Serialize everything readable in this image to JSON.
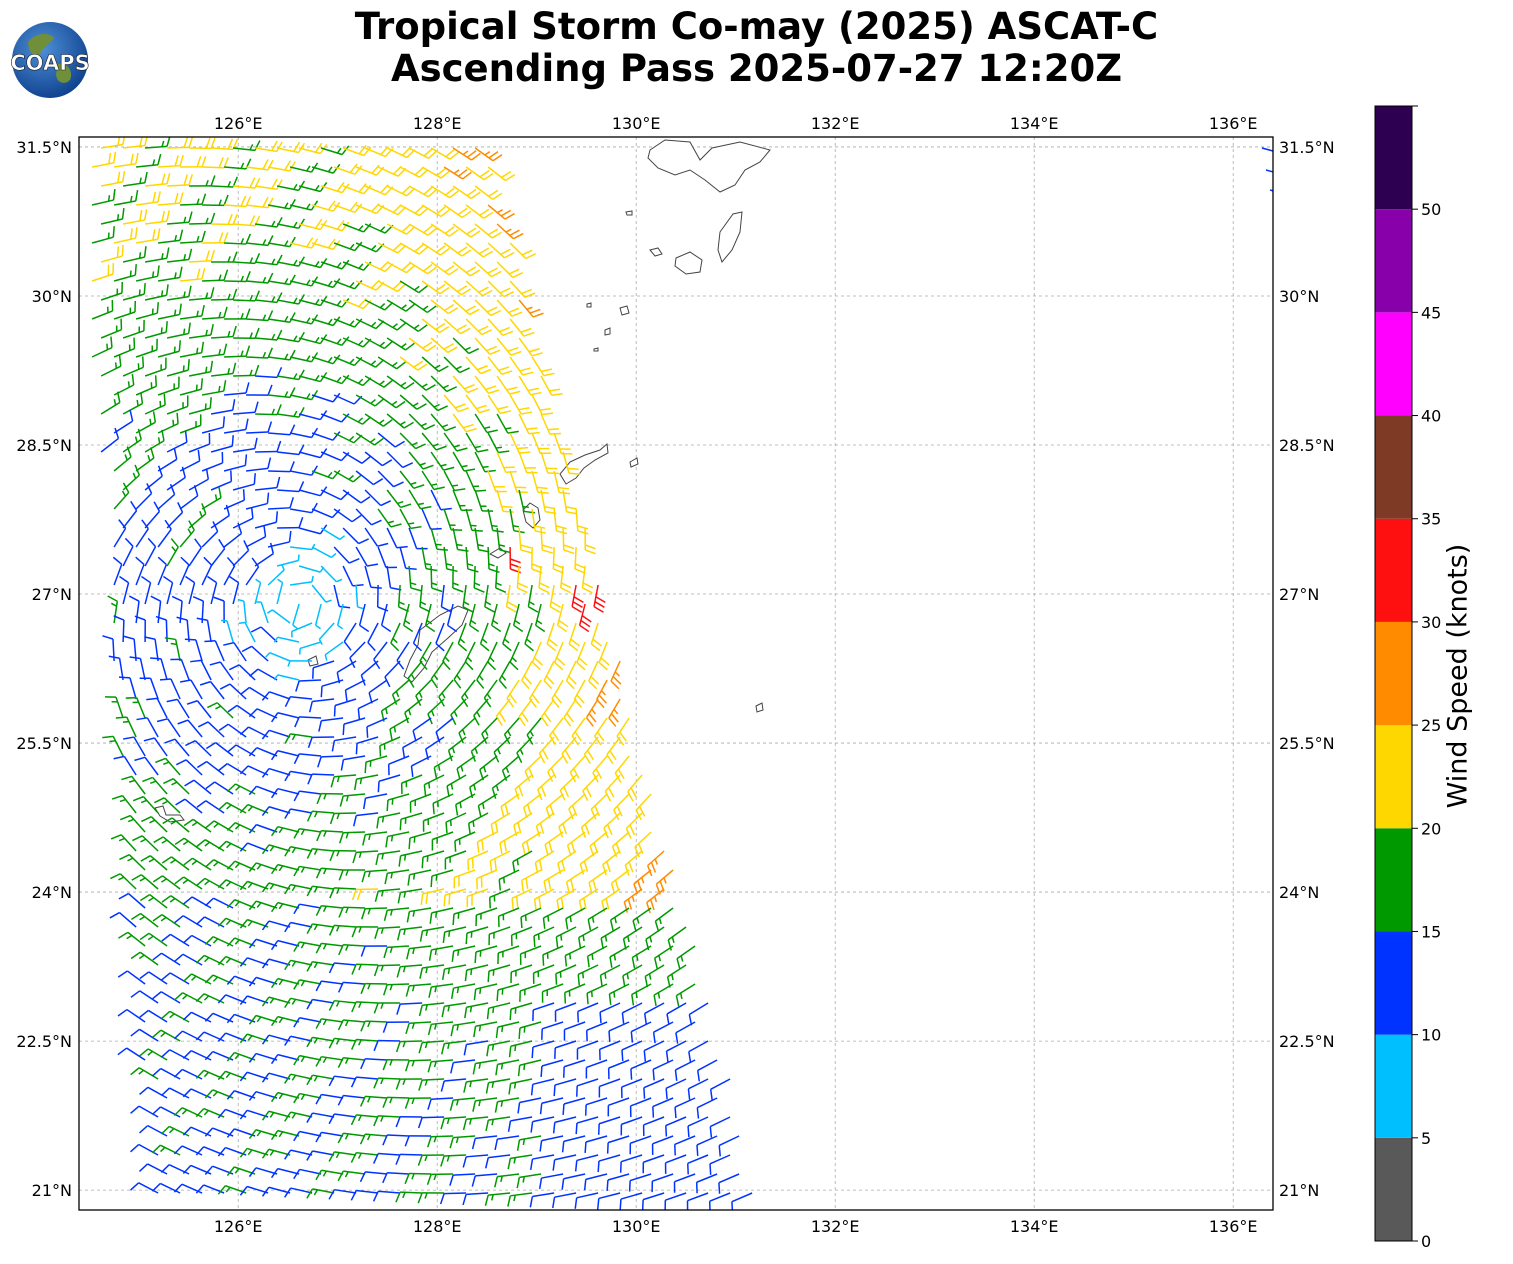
{
  "title": {
    "line1": "Tropical Storm Co-may (2025) ASCAT-C",
    "line2": "Ascending Pass 2025-07-27 12:20Z"
  },
  "logo": {
    "text": "COAPS",
    "icon": "globe-logo-icon"
  },
  "map": {
    "lon_range": [
      124.4,
      136.4
    ],
    "lat_range": [
      20.8,
      31.6
    ],
    "lon_ticks": [
      126,
      128,
      130,
      132,
      134,
      136
    ],
    "lon_tick_labels": [
      "126°E",
      "128°E",
      "130°E",
      "132°E",
      "134°E",
      "136°E"
    ],
    "lat_ticks": [
      21,
      22.5,
      24,
      25.5,
      27,
      28.5,
      30,
      31.5
    ],
    "lat_tick_labels": [
      "21°N",
      "22.5°N",
      "24°N",
      "25.5°N",
      "27°N",
      "28.5°N",
      "30°N",
      "31.5°N"
    ],
    "gridlines": true,
    "storm_center": {
      "lon": 126.6,
      "lat": 26.9
    }
  },
  "colorbar": {
    "label": "Wind Speed (knots)",
    "bounds": [
      0,
      5,
      10,
      15,
      20,
      25,
      30,
      35,
      40,
      45,
      50,
      55
    ],
    "tick_labels": [
      "0",
      "5",
      "10",
      "15",
      "20",
      "25",
      "30",
      "35",
      "40",
      "45",
      "50"
    ],
    "colors": [
      "#595959",
      "#00bfff",
      "#0033ff",
      "#009900",
      "#ffd700",
      "#ff8c00",
      "#ff1010",
      "#7f3a26",
      "#ff00ff",
      "#8800aa",
      "#2d0052"
    ]
  },
  "colors": {
    "land_fill": "#ffffff",
    "coastline": "#444444",
    "grid": "#aaaaaa"
  }
}
